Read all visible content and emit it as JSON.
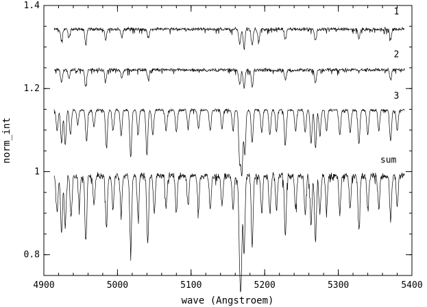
{
  "chart_data": {
    "type": "line",
    "title": "",
    "xlabel": "wave (Angstroem)",
    "ylabel": "norm_int",
    "xlim": [
      4900,
      5400
    ],
    "ylim": [
      0.75,
      1.4
    ],
    "x_ticks": [
      4900,
      5000,
      5100,
      5200,
      5300,
      5400
    ],
    "x_tick_labels": [
      "4900",
      "5000",
      "5100",
      "5200",
      "5300",
      "5400"
    ],
    "y_ticks": [
      0.8,
      1.0,
      1.2,
      1.4
    ],
    "y_tick_labels": [
      "0.8",
      "1",
      "1.2",
      "1.4"
    ],
    "x_minor_step": 20,
    "y_minor_step": 0.05,
    "grid": false,
    "legend": "none",
    "line_color": "#000000",
    "series": [
      {
        "name": "1",
        "label": "1",
        "label_x": 5379,
        "label_y": 1.385,
        "x_range": [
          4914,
          5390
        ],
        "continuum": 1.343,
        "noise": 0.004,
        "lines": [
          {
            "x": 4924,
            "depth": 0.028
          },
          {
            "x": 4934,
            "depth": 0.022
          },
          {
            "x": 4957,
            "depth": 0.036
          },
          {
            "x": 4984,
            "depth": 0.024
          },
          {
            "x": 5006,
            "depth": 0.02
          },
          {
            "x": 5042,
            "depth": 0.022
          },
          {
            "x": 5166,
            "depth": 0.035
          },
          {
            "x": 5172,
            "depth": 0.045
          },
          {
            "x": 5183,
            "depth": 0.04
          },
          {
            "x": 5192,
            "depth": 0.028
          },
          {
            "x": 5228,
            "depth": 0.024
          },
          {
            "x": 5269,
            "depth": 0.03
          },
          {
            "x": 5328,
            "depth": 0.022
          },
          {
            "x": 5371,
            "depth": 0.024
          }
        ]
      },
      {
        "name": "2",
        "label": "2",
        "label_x": 5379,
        "label_y": 1.282,
        "x_range": [
          4914,
          5390
        ],
        "continuum": 1.245,
        "noise": 0.004,
        "lines": [
          {
            "x": 4924,
            "depth": 0.03
          },
          {
            "x": 4934,
            "depth": 0.022
          },
          {
            "x": 4957,
            "depth": 0.042
          },
          {
            "x": 4984,
            "depth": 0.024
          },
          {
            "x": 5006,
            "depth": 0.02
          },
          {
            "x": 5042,
            "depth": 0.022
          },
          {
            "x": 5166,
            "depth": 0.035
          },
          {
            "x": 5172,
            "depth": 0.042
          },
          {
            "x": 5183,
            "depth": 0.04
          },
          {
            "x": 5228,
            "depth": 0.024
          },
          {
            "x": 5269,
            "depth": 0.03
          },
          {
            "x": 5371,
            "depth": 0.024
          }
        ]
      },
      {
        "name": "3",
        "label": "3",
        "label_x": 5379,
        "label_y": 1.182,
        "x_range": [
          4914,
          5390
        ],
        "continuum": 1.148,
        "noise": 0.003,
        "lines": [
          {
            "x": 4918,
            "depth": 0.05
          },
          {
            "x": 4924,
            "depth": 0.08
          },
          {
            "x": 4929,
            "depth": 0.085
          },
          {
            "x": 4936,
            "depth": 0.06
          },
          {
            "x": 4946,
            "depth": 0.035
          },
          {
            "x": 4958,
            "depth": 0.075
          },
          {
            "x": 4968,
            "depth": 0.04
          },
          {
            "x": 4985,
            "depth": 0.09
          },
          {
            "x": 4994,
            "depth": 0.05
          },
          {
            "x": 5005,
            "depth": 0.06
          },
          {
            "x": 5018,
            "depth": 0.115
          },
          {
            "x": 5028,
            "depth": 0.06
          },
          {
            "x": 5040,
            "depth": 0.11
          },
          {
            "x": 5048,
            "depth": 0.06
          },
          {
            "x": 5066,
            "depth": 0.05
          },
          {
            "x": 5080,
            "depth": 0.055
          },
          {
            "x": 5096,
            "depth": 0.04
          },
          {
            "x": 5110,
            "depth": 0.045
          },
          {
            "x": 5126,
            "depth": 0.05
          },
          {
            "x": 5142,
            "depth": 0.045
          },
          {
            "x": 5157,
            "depth": 0.05
          },
          {
            "x": 5166,
            "depth": 0.12
          },
          {
            "x": 5169,
            "depth": 0.15
          },
          {
            "x": 5173,
            "depth": 0.105
          },
          {
            "x": 5183,
            "depth": 0.08
          },
          {
            "x": 5196,
            "depth": 0.055
          },
          {
            "x": 5207,
            "depth": 0.06
          },
          {
            "x": 5216,
            "depth": 0.05
          },
          {
            "x": 5228,
            "depth": 0.085
          },
          {
            "x": 5242,
            "depth": 0.05
          },
          {
            "x": 5255,
            "depth": 0.055
          },
          {
            "x": 5263,
            "depth": 0.08
          },
          {
            "x": 5269,
            "depth": 0.09
          },
          {
            "x": 5275,
            "depth": 0.06
          },
          {
            "x": 5284,
            "depth": 0.05
          },
          {
            "x": 5302,
            "depth": 0.06
          },
          {
            "x": 5316,
            "depth": 0.055
          },
          {
            "x": 5328,
            "depth": 0.08
          },
          {
            "x": 5340,
            "depth": 0.06
          },
          {
            "x": 5355,
            "depth": 0.05
          },
          {
            "x": 5371,
            "depth": 0.075
          },
          {
            "x": 5380,
            "depth": 0.05
          }
        ]
      },
      {
        "name": "sum",
        "label": "sum",
        "label_x": 5368,
        "label_y": 1.028,
        "x_range": [
          4914,
          5390
        ],
        "continuum": 0.99,
        "noise": 0.008,
        "lines": [
          {
            "x": 4918,
            "depth": 0.09
          },
          {
            "x": 4924,
            "depth": 0.14
          },
          {
            "x": 4929,
            "depth": 0.12
          },
          {
            "x": 4937,
            "depth": 0.1
          },
          {
            "x": 4948,
            "depth": 0.07
          },
          {
            "x": 4957,
            "depth": 0.16
          },
          {
            "x": 4968,
            "depth": 0.07
          },
          {
            "x": 4985,
            "depth": 0.13
          },
          {
            "x": 4994,
            "depth": 0.08
          },
          {
            "x": 5005,
            "depth": 0.09
          },
          {
            "x": 5018,
            "depth": 0.18
          },
          {
            "x": 5028,
            "depth": 0.1
          },
          {
            "x": 5041,
            "depth": 0.16
          },
          {
            "x": 5050,
            "depth": 0.09
          },
          {
            "x": 5066,
            "depth": 0.08
          },
          {
            "x": 5080,
            "depth": 0.09
          },
          {
            "x": 5096,
            "depth": 0.07
          },
          {
            "x": 5110,
            "depth": 0.08
          },
          {
            "x": 5126,
            "depth": 0.08
          },
          {
            "x": 5142,
            "depth": 0.07
          },
          {
            "x": 5157,
            "depth": 0.08
          },
          {
            "x": 5166,
            "depth": 0.17
          },
          {
            "x": 5168,
            "depth": 0.21
          },
          {
            "x": 5172,
            "depth": 0.19
          },
          {
            "x": 5183,
            "depth": 0.17
          },
          {
            "x": 5196,
            "depth": 0.09
          },
          {
            "x": 5207,
            "depth": 0.09
          },
          {
            "x": 5216,
            "depth": 0.08
          },
          {
            "x": 5228,
            "depth": 0.15
          },
          {
            "x": 5242,
            "depth": 0.08
          },
          {
            "x": 5255,
            "depth": 0.09
          },
          {
            "x": 5263,
            "depth": 0.12
          },
          {
            "x": 5269,
            "depth": 0.16
          },
          {
            "x": 5275,
            "depth": 0.09
          },
          {
            "x": 5284,
            "depth": 0.08
          },
          {
            "x": 5302,
            "depth": 0.09
          },
          {
            "x": 5316,
            "depth": 0.08
          },
          {
            "x": 5328,
            "depth": 0.13
          },
          {
            "x": 5340,
            "depth": 0.08
          },
          {
            "x": 5355,
            "depth": 0.08
          },
          {
            "x": 5371,
            "depth": 0.1
          },
          {
            "x": 5380,
            "depth": 0.07
          }
        ]
      }
    ]
  }
}
